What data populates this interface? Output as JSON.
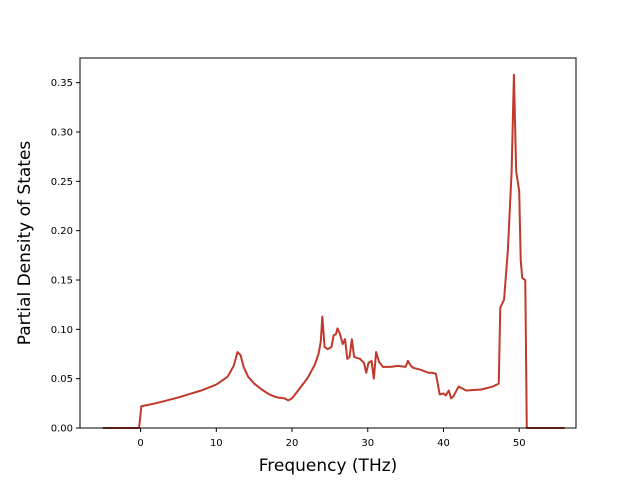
{
  "chart_data": {
    "type": "line",
    "title": "",
    "xlabel": "Frequency (THz)",
    "ylabel": "Partial Density of States",
    "xlim": [
      -8,
      57.5
    ],
    "ylim": [
      0,
      0.375
    ],
    "grid": false,
    "x_ticks": [
      0,
      10,
      20,
      30,
      40,
      50
    ],
    "y_ticks": [
      0.0,
      0.05,
      0.1,
      0.15,
      0.2,
      0.25,
      0.3,
      0.35
    ],
    "y_tick_labels": [
      "0.00",
      "0.05",
      "0.10",
      "0.15",
      "0.20",
      "0.25",
      "0.30",
      "0.35"
    ],
    "series": [
      {
        "color": "#c0392b",
        "x": [
          -5,
          -0.2,
          0.1,
          2,
          5,
          8,
          10,
          11.5,
          12.3,
          12.8,
          13.2,
          13.6,
          14.2,
          15,
          16,
          17,
          18,
          19,
          19.5,
          20,
          20.5,
          21,
          22,
          23,
          23.5,
          23.8,
          24,
          24.3,
          24.7,
          25.2,
          25.5,
          25.8,
          26,
          26.3,
          26.7,
          27,
          27.3,
          27.6,
          27.9,
          28.2,
          28.6,
          29,
          29.5,
          29.8,
          30.1,
          30.5,
          30.8,
          31.1,
          31.5,
          32,
          33,
          34,
          35,
          35.3,
          35.7,
          36,
          37,
          38,
          38.5,
          39,
          39.5,
          40,
          40.3,
          40.7,
          41,
          41.3,
          42,
          43,
          45,
          46.5,
          47.3,
          47.5,
          48,
          48.5,
          49,
          49.3,
          49.6,
          50,
          50.2,
          50.4,
          50.8,
          51,
          56
        ],
        "y": [
          0,
          0,
          0.022,
          0.025,
          0.031,
          0.038,
          0.044,
          0.052,
          0.063,
          0.077,
          0.074,
          0.062,
          0.052,
          0.045,
          0.039,
          0.034,
          0.031,
          0.03,
          0.028,
          0.03,
          0.035,
          0.04,
          0.05,
          0.064,
          0.075,
          0.088,
          0.113,
          0.082,
          0.08,
          0.082,
          0.094,
          0.095,
          0.101,
          0.096,
          0.085,
          0.09,
          0.07,
          0.072,
          0.09,
          0.072,
          0.071,
          0.07,
          0.066,
          0.056,
          0.066,
          0.068,
          0.05,
          0.077,
          0.067,
          0.062,
          0.062,
          0.063,
          0.062,
          0.068,
          0.063,
          0.061,
          0.059,
          0.056,
          0.056,
          0.055,
          0.034,
          0.035,
          0.033,
          0.038,
          0.03,
          0.032,
          0.042,
          0.038,
          0.039,
          0.042,
          0.045,
          0.122,
          0.13,
          0.18,
          0.26,
          0.358,
          0.26,
          0.24,
          0.17,
          0.152,
          0.15,
          0,
          0
        ]
      }
    ]
  }
}
